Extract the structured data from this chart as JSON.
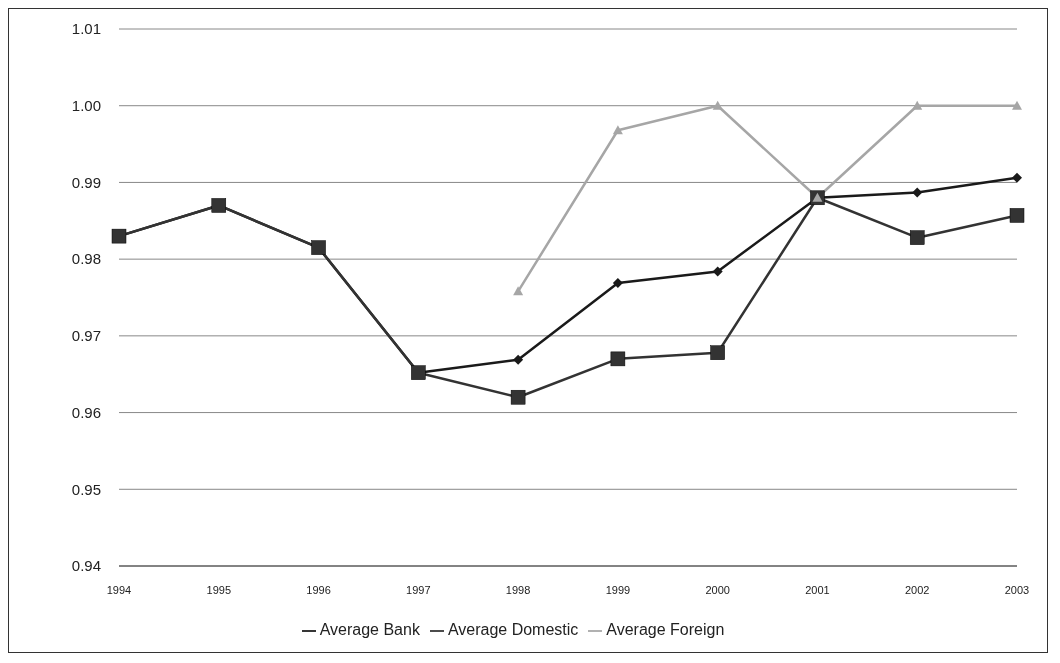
{
  "chart_data": {
    "type": "line",
    "categories": [
      "1994",
      "1995",
      "1996",
      "1997",
      "1998",
      "1999",
      "2000",
      "2001",
      "2002",
      "2003"
    ],
    "series": [
      {
        "name": "Average Bank",
        "color": "#1a1a1a",
        "marker": "diamond",
        "values": [
          0.983,
          0.987,
          0.9815,
          0.9652,
          0.9669,
          0.9769,
          0.9784,
          0.988,
          0.9887,
          0.9906
        ]
      },
      {
        "name": "Average Domestic",
        "color": "#333333",
        "marker": "square",
        "values": [
          0.983,
          0.987,
          0.9815,
          0.9652,
          0.962,
          0.967,
          0.9678,
          0.988,
          0.9828,
          0.9857
        ]
      },
      {
        "name": "Average Foreign",
        "color": "#a6a6a6",
        "marker": "triangle",
        "values": [
          null,
          null,
          null,
          null,
          0.9758,
          0.9968,
          1.0,
          0.988,
          1.0,
          1.0
        ]
      }
    ],
    "ylim": [
      0.94,
      1.01
    ],
    "yticks": [
      {
        "value": 0.94,
        "label": "0.94"
      },
      {
        "value": 0.95,
        "label": "0.95"
      },
      {
        "value": 0.96,
        "label": "0.96"
      },
      {
        "value": 0.97,
        "label": "0.97"
      },
      {
        "value": 0.98,
        "label": "0.98"
      },
      {
        "value": 0.99,
        "label": "0.99"
      },
      {
        "value": 1.0,
        "label": "1.00"
      },
      {
        "value": 1.01,
        "label": "1.01"
      }
    ],
    "grid": "y",
    "legend": "bottom"
  }
}
